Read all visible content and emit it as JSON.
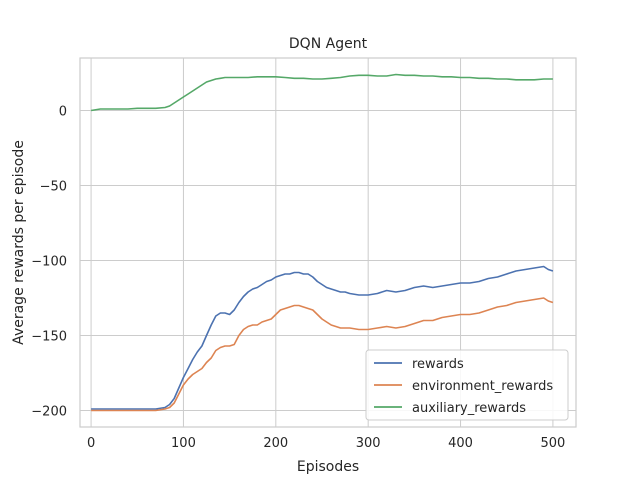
{
  "chart_data": {
    "type": "line",
    "title": "DQN Agent",
    "xlabel": "Episodes",
    "ylabel": "Average rewards per episode",
    "xlim": [
      -12,
      525
    ],
    "ylim": [
      -211,
      35
    ],
    "xticks": [
      0,
      100,
      200,
      300,
      400,
      500
    ],
    "yticks": [
      0,
      -50,
      -100,
      -150,
      -200
    ],
    "xtick_labels": [
      "0",
      "100",
      "200",
      "300",
      "400",
      "500"
    ],
    "ytick_labels": [
      "0",
      "−50",
      "−100",
      "−150",
      "−200"
    ],
    "grid": true,
    "legend": "lower-right",
    "series": [
      {
        "name": "rewards",
        "color": "#4c72b0",
        "x": [
          0,
          10,
          20,
          30,
          40,
          50,
          60,
          70,
          80,
          85,
          90,
          95,
          100,
          105,
          110,
          115,
          120,
          125,
          130,
          135,
          140,
          145,
          150,
          155,
          160,
          165,
          170,
          175,
          180,
          185,
          190,
          195,
          200,
          205,
          210,
          215,
          220,
          225,
          230,
          235,
          240,
          245,
          250,
          255,
          260,
          265,
          270,
          275,
          280,
          290,
          300,
          310,
          320,
          330,
          340,
          350,
          360,
          370,
          380,
          390,
          400,
          410,
          420,
          430,
          440,
          450,
          460,
          470,
          480,
          490,
          495,
          500
        ],
        "y": [
          -199,
          -199,
          -199,
          -199,
          -199,
          -199,
          -199,
          -199,
          -198,
          -196,
          -192,
          -185,
          -178,
          -172,
          -166,
          -161,
          -157,
          -150,
          -143,
          -137,
          -135,
          -135,
          -136,
          -133,
          -128,
          -124,
          -121,
          -119,
          -118,
          -116,
          -114,
          -113,
          -111,
          -110,
          -109,
          -109,
          -108,
          -108,
          -109,
          -109,
          -111,
          -114,
          -116,
          -118,
          -119,
          -120,
          -121,
          -121,
          -122,
          -123,
          -123,
          -122,
          -120,
          -121,
          -120,
          -118,
          -117,
          -118,
          -117,
          -116,
          -115,
          -115,
          -114,
          -112,
          -111,
          -109,
          -107,
          -106,
          -105,
          -104,
          -106,
          -107
        ]
      },
      {
        "name": "environment_rewards",
        "color": "#dd8452",
        "x": [
          0,
          10,
          20,
          30,
          40,
          50,
          60,
          70,
          80,
          85,
          90,
          95,
          100,
          105,
          110,
          115,
          120,
          125,
          130,
          135,
          140,
          145,
          150,
          155,
          160,
          165,
          170,
          175,
          180,
          185,
          190,
          195,
          200,
          205,
          210,
          215,
          220,
          225,
          230,
          235,
          240,
          245,
          250,
          255,
          260,
          265,
          270,
          275,
          280,
          290,
          300,
          310,
          320,
          330,
          340,
          350,
          360,
          370,
          380,
          390,
          400,
          410,
          420,
          430,
          440,
          450,
          460,
          470,
          480,
          490,
          495,
          500
        ],
        "y": [
          -200,
          -200,
          -200,
          -200,
          -200,
          -200,
          -200,
          -200,
          -199,
          -198,
          -195,
          -189,
          -183,
          -179,
          -176,
          -174,
          -172,
          -168,
          -165,
          -160,
          -158,
          -157,
          -157,
          -156,
          -150,
          -146,
          -144,
          -143,
          -143,
          -141,
          -140,
          -139,
          -136,
          -133,
          -132,
          -131,
          -130,
          -130,
          -131,
          -132,
          -133,
          -136,
          -139,
          -141,
          -143,
          -144,
          -145,
          -145,
          -145,
          -146,
          -146,
          -145,
          -144,
          -145,
          -144,
          -142,
          -140,
          -140,
          -138,
          -137,
          -136,
          -136,
          -135,
          -133,
          -131,
          -130,
          -128,
          -127,
          -126,
          -125,
          -127,
          -128
        ]
      },
      {
        "name": "auxiliary_rewards",
        "color": "#55a868",
        "x": [
          0,
          10,
          20,
          30,
          40,
          50,
          60,
          70,
          80,
          85,
          90,
          95,
          100,
          105,
          110,
          115,
          120,
          125,
          130,
          135,
          140,
          145,
          150,
          160,
          170,
          180,
          190,
          200,
          210,
          220,
          230,
          240,
          250,
          260,
          270,
          280,
          290,
          300,
          310,
          320,
          330,
          340,
          350,
          360,
          370,
          380,
          390,
          400,
          410,
          420,
          430,
          440,
          450,
          460,
          470,
          480,
          490,
          500
        ],
        "y": [
          0,
          1,
          1,
          1,
          1,
          1.5,
          1.5,
          1.5,
          2,
          3,
          5,
          7,
          9,
          11,
          13,
          15,
          17,
          19,
          20,
          21,
          21.5,
          22,
          22,
          22,
          22,
          22.5,
          22.5,
          22.5,
          22,
          21.5,
          21.5,
          21,
          21,
          21.5,
          22,
          23,
          23.5,
          23.5,
          23,
          23,
          24,
          23.5,
          23.5,
          23,
          23,
          22.5,
          22.5,
          22,
          22,
          21.5,
          21.5,
          21,
          21,
          20.5,
          20.5,
          20.5,
          21,
          21
        ]
      }
    ]
  }
}
